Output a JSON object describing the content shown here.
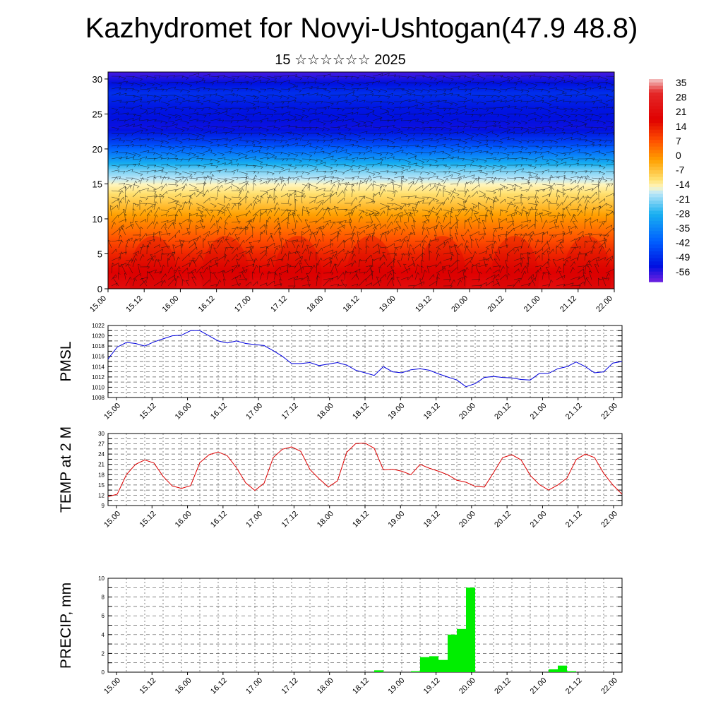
{
  "header": {
    "title": "Kazhydromet for Novyi-Ushtogan(47.9 48.8)",
    "subtitle": "15 ☆☆☆☆☆☆ 2025"
  },
  "chart_data": [
    {
      "type": "heatmap",
      "title": "",
      "xlabel": "",
      "ylabel": "",
      "x_ticks": [
        "15.00",
        "15.12",
        "16.00",
        "16.12",
        "17.00",
        "17.12",
        "18.00",
        "18.12",
        "19.00",
        "19.12",
        "20.00",
        "20.12",
        "21.00",
        "21.12",
        "22.00"
      ],
      "xlim": [
        0,
        168
      ],
      "y_ticks": [
        "0",
        "5",
        "10",
        "15",
        "20",
        "25",
        "30"
      ],
      "ylim": [
        0,
        31
      ],
      "overlay": "wind vectors",
      "colorbar": {
        "labels": [
          "35",
          "28",
          "21",
          "14",
          "7",
          "0",
          "-7",
          "-14",
          "-21",
          "-28",
          "-35",
          "-42",
          "-49",
          "-56"
        ],
        "range": [
          -63,
          42
        ],
        "stops": [
          {
            "v": 42,
            "c": "#f4c8c8"
          },
          {
            "v": 35,
            "c": "#e42828"
          },
          {
            "v": 21,
            "c": "#e00000"
          },
          {
            "v": 10,
            "c": "#ff5000"
          },
          {
            "v": 0,
            "c": "#ffa000"
          },
          {
            "v": -10,
            "c": "#ffe070"
          },
          {
            "v": -14,
            "c": "#fff6c0"
          },
          {
            "v": -17,
            "c": "#bfe8f8"
          },
          {
            "v": -28,
            "c": "#18b0f0"
          },
          {
            "v": -42,
            "c": "#0060ff"
          },
          {
            "v": -55,
            "c": "#0010e0"
          },
          {
            "v": -63,
            "c": "#7020e0"
          }
        ]
      },
      "profile": [
        {
          "z": 0,
          "t": 26
        },
        {
          "z": 5,
          "t": 16
        },
        {
          "z": 10,
          "t": 2
        },
        {
          "z": 13,
          "t": -8
        },
        {
          "z": 15,
          "t": -14
        },
        {
          "z": 17,
          "t": -22
        },
        {
          "z": 19,
          "t": -35
        },
        {
          "z": 21,
          "t": -47
        },
        {
          "z": 23,
          "t": -56
        },
        {
          "z": 26,
          "t": -54
        },
        {
          "z": 28,
          "t": -50
        },
        {
          "z": 31,
          "t": -60
        }
      ]
    },
    {
      "type": "line",
      "ylabel": "PMSL",
      "ylim": [
        1008,
        1022
      ],
      "y_ticks": [
        "1008",
        "1010",
        "1012",
        "1014",
        "1016",
        "1018",
        "1020",
        "1022"
      ],
      "x_ticks": [
        "15.00",
        "15.12",
        "16.00",
        "16.12",
        "17.00",
        "17.12",
        "18.00",
        "18.12",
        "19.00",
        "19.12",
        "20.00",
        "20.12",
        "21.00",
        "21.12",
        "22.00"
      ],
      "xlim": [
        0,
        168
      ],
      "color": "#0000dd",
      "x": [
        0,
        3,
        6,
        9,
        12,
        15,
        18,
        21,
        24,
        27,
        30,
        33,
        36,
        39,
        42,
        45,
        48,
        51,
        54,
        57,
        60,
        63,
        66,
        69,
        72,
        75,
        78,
        81,
        84,
        87,
        90,
        93,
        96,
        99,
        102,
        105,
        108,
        111,
        114,
        117,
        120,
        123,
        126,
        129,
        132,
        135,
        138,
        141,
        144,
        147,
        150,
        153,
        156,
        159,
        162,
        165,
        168
      ],
      "values": [
        1015.5,
        1017.8,
        1018.7,
        1018.5,
        1018.0,
        1018.8,
        1019.4,
        1020.0,
        1020.1,
        1021.0,
        1021.0,
        1020.0,
        1019.0,
        1018.6,
        1019.0,
        1018.5,
        1018.3,
        1018.1,
        1017.1,
        1016.0,
        1014.6,
        1014.6,
        1014.8,
        1014.2,
        1014.5,
        1014.8,
        1014.3,
        1013.3,
        1012.8,
        1012.3,
        1014.0,
        1013.0,
        1012.8,
        1013.4,
        1013.6,
        1013.3,
        1012.6,
        1012.0,
        1011.4,
        1010.1,
        1010.7,
        1011.9,
        1012.1,
        1011.9,
        1011.8,
        1011.5,
        1011.4,
        1012.7,
        1012.7,
        1013.6,
        1014.0,
        1014.9,
        1014.0,
        1012.8,
        1013.0,
        1014.7,
        1015.0
      ]
    },
    {
      "type": "line",
      "ylabel": "TEMP at 2 M",
      "ylim": [
        9,
        30
      ],
      "y_ticks": [
        "9",
        "12",
        "15",
        "18",
        "21",
        "24",
        "27",
        "30"
      ],
      "x_ticks": [
        "15.00",
        "15.12",
        "16.00",
        "16.12",
        "17.00",
        "17.12",
        "18.00",
        "18.12",
        "19.00",
        "19.12",
        "20.00",
        "20.12",
        "21.00",
        "21.12",
        "22.00"
      ],
      "xlim": [
        0,
        168
      ],
      "color": "#dd0000",
      "x": [
        0,
        3,
        6,
        9,
        12,
        15,
        18,
        21,
        24,
        27,
        30,
        33,
        36,
        39,
        42,
        45,
        48,
        51,
        54,
        57,
        60,
        63,
        66,
        69,
        72,
        75,
        78,
        81,
        84,
        87,
        90,
        93,
        96,
        99,
        102,
        105,
        108,
        111,
        114,
        117,
        120,
        123,
        126,
        129,
        132,
        135,
        138,
        141,
        144,
        147,
        150,
        153,
        156,
        159,
        162,
        165,
        168
      ],
      "values": [
        11.6,
        12.3,
        18.0,
        21.0,
        22.3,
        21.4,
        17.5,
        14.7,
        14.0,
        14.8,
        21.5,
        23.8,
        24.6,
        23.5,
        20.0,
        15.6,
        13.4,
        15.5,
        23.0,
        25.4,
        26.1,
        24.8,
        19.5,
        16.8,
        14.4,
        16.2,
        24.5,
        27.1,
        27.2,
        25.7,
        19.4,
        19.6,
        19.0,
        18.0,
        21.0,
        19.9,
        19.0,
        18.0,
        16.4,
        15.8,
        14.6,
        14.4,
        18.6,
        23.0,
        23.8,
        22.3,
        17.8,
        15.1,
        13.5,
        15.0,
        17.0,
        22.4,
        24.0,
        23.0,
        18.4,
        15.0,
        12.3
      ]
    },
    {
      "type": "bar",
      "ylabel": "PRECIP, mm",
      "ylim": [
        0,
        10
      ],
      "y_ticks": [
        "0",
        "2",
        "4",
        "6",
        "8",
        "10"
      ],
      "x_ticks": [
        "15.00",
        "15.12",
        "16.00",
        "16.12",
        "17.00",
        "17.12",
        "18.00",
        "18.12",
        "19.00",
        "19.12",
        "20.00",
        "20.12",
        "21.00",
        "21.12",
        "22.00"
      ],
      "xlim": [
        0,
        168
      ],
      "color": "#00ee00",
      "bins": [
        {
          "x0": 87,
          "x1": 90,
          "value": 0.2
        },
        {
          "x0": 99,
          "x1": 102,
          "value": 0.1
        },
        {
          "x0": 102,
          "x1": 105,
          "value": 1.6
        },
        {
          "x0": 105,
          "x1": 108,
          "value": 1.7
        },
        {
          "x0": 108,
          "x1": 111,
          "value": 1.3
        },
        {
          "x0": 111,
          "x1": 114,
          "value": 4.0
        },
        {
          "x0": 114,
          "x1": 117,
          "value": 4.6
        },
        {
          "x0": 117,
          "x1": 120,
          "value": 9.0
        },
        {
          "x0": 144,
          "x1": 147,
          "value": 0.3
        },
        {
          "x0": 147,
          "x1": 150,
          "value": 0.7
        },
        {
          "x0": 150,
          "x1": 153,
          "value": 0.1
        }
      ]
    }
  ]
}
